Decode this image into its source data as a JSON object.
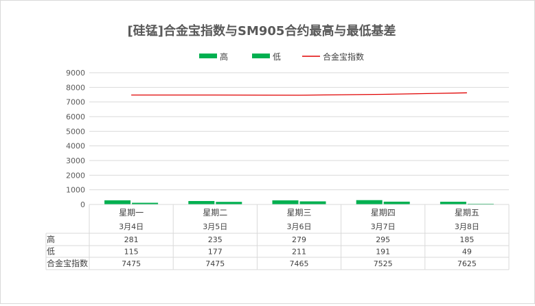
{
  "chart_data": {
    "type": "bar",
    "title": "[硅锰]合金宝指数与SM905合约最高与最低基差",
    "categories": [
      {
        "day": "星期一",
        "date": "3月4日"
      },
      {
        "day": "星期二",
        "date": "3月5日"
      },
      {
        "day": "星期三",
        "date": "3月6日"
      },
      {
        "day": "星期四",
        "date": "3月7日"
      },
      {
        "day": "星期五",
        "date": "3月8日"
      }
    ],
    "series": [
      {
        "name": "高",
        "type": "bar",
        "color": "#00b050",
        "values": [
          281,
          235,
          279,
          295,
          185
        ]
      },
      {
        "name": "低",
        "type": "bar",
        "color": "#00b050",
        "values": [
          115,
          177,
          211,
          191,
          49
        ]
      },
      {
        "name": "合金宝指数",
        "type": "line",
        "color": "#e00000",
        "values": [
          7475,
          7475,
          7465,
          7525,
          7625
        ]
      }
    ],
    "ylim": [
      0,
      9000
    ],
    "yticks": [
      0,
      1000,
      2000,
      3000,
      4000,
      5000,
      6000,
      7000,
      8000,
      9000
    ],
    "grid": true,
    "legend_position": "top",
    "data_table": true
  }
}
